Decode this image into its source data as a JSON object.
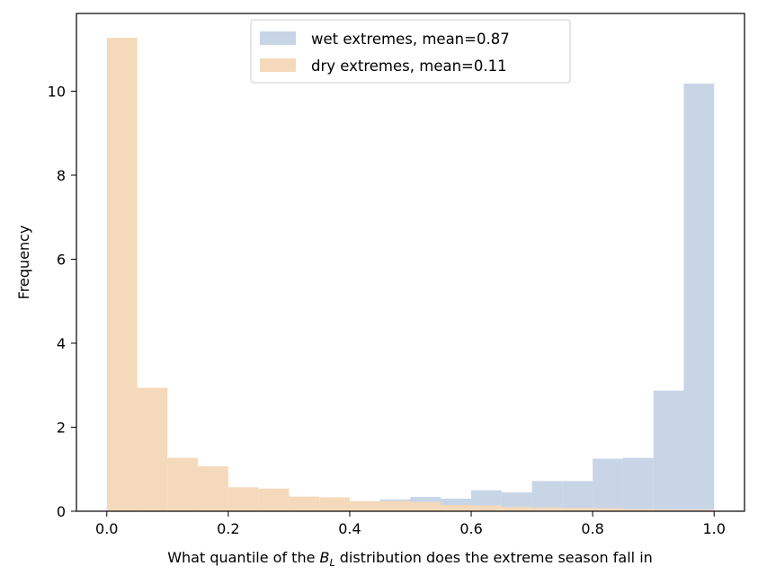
{
  "chart_data": {
    "type": "histogram",
    "xlabel_prefix": "What quantile of the ",
    "xlabel_var": "B",
    "xlabel_sub": "L",
    "xlabel_suffix": " distribution does the extreme season fall in",
    "ylabel": "Frequency",
    "xlim": [
      -0.05,
      1.05
    ],
    "ylim": [
      0,
      11.85
    ],
    "xticks": [
      "0.0",
      "0.2",
      "0.4",
      "0.6",
      "0.8",
      "1.0"
    ],
    "yticks": [
      "0",
      "2",
      "4",
      "6",
      "8",
      "10"
    ],
    "bin_width": 0.05,
    "bin_starts": [
      0.0,
      0.05,
      0.1,
      0.15,
      0.2,
      0.25,
      0.3,
      0.35,
      0.4,
      0.45,
      0.5,
      0.55,
      0.6,
      0.65,
      0.7,
      0.75,
      0.8,
      0.85,
      0.9,
      0.95
    ],
    "legend_position": "upper center",
    "series": [
      {
        "name": "wet extremes, mean=0.87",
        "color": "#c7d5e7",
        "values": [
          0.03,
          0.03,
          0.05,
          0.06,
          0.08,
          0.1,
          0.12,
          0.17,
          0.2,
          0.28,
          0.34,
          0.3,
          0.5,
          0.45,
          0.72,
          0.72,
          1.25,
          1.27,
          2.87,
          10.18
        ]
      },
      {
        "name": "dry extremes, mean=0.11",
        "color": "#f5d9bb",
        "values": [
          11.27,
          2.94,
          1.27,
          1.07,
          0.57,
          0.54,
          0.35,
          0.33,
          0.24,
          0.24,
          0.22,
          0.15,
          0.14,
          0.1,
          0.09,
          0.08,
          0.07,
          0.05,
          0.04,
          0.04
        ]
      }
    ]
  }
}
